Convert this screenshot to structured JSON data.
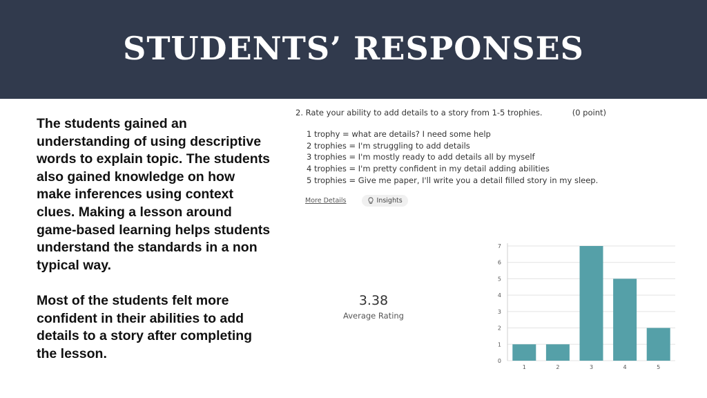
{
  "header": {
    "title": "STUDENTS’ RESPONSES"
  },
  "body_text": {
    "paragraph1": "The students gained an understanding of using descriptive words to explain topic. The students also gained knowledge on how make inferences using context clues. Making a lesson around game-based learning helps students understand the standards in a non typical way.",
    "paragraph2": "Most of the students felt more confident in their abilities to add details to a story after completing the lesson."
  },
  "question": {
    "title": "2.  Rate your ability to add details to a story from 1-5 trophies.",
    "points": "(0 point)",
    "options": [
      "1 trophy = what are details? I need some help",
      "2 trophies = I'm struggling to add details",
      "3 trophies = I'm mostly ready to add details all by myself",
      "4 trophies = I'm pretty confident in my detail adding abilities",
      "5 trophies = Give me paper, I'll write you a detail filled story in my sleep."
    ],
    "more_details": "More Details",
    "insights": "Insights",
    "insights_icon": "lightbulb-icon"
  },
  "average": {
    "value": "3.38",
    "label": "Average Rating"
  },
  "colors": {
    "header_bg": "#313a4d",
    "bar": "#55a0a8"
  },
  "chart_data": {
    "type": "bar",
    "categories": [
      "1",
      "2",
      "3",
      "4",
      "5"
    ],
    "values": [
      1,
      1,
      7,
      5,
      2
    ],
    "yticks": [
      "0",
      "1",
      "2",
      "3",
      "4",
      "5",
      "6",
      "7"
    ],
    "ylim": [
      0,
      7
    ],
    "grid": true
  }
}
